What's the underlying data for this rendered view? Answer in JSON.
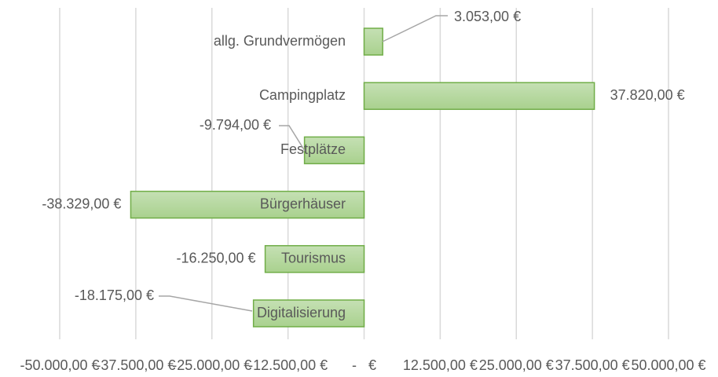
{
  "chart_data": {
    "type": "hbar",
    "categories": [
      "allg. Grundvermögen",
      "Campingplatz",
      "Festplätze",
      "Bürgerhäuser",
      "Tourismus",
      "Digitalisierung"
    ],
    "values": [
      3053,
      37820,
      -9794,
      -38329,
      -16250,
      -18175
    ],
    "value_labels": [
      "3.053,00 €",
      "37.820,00 €",
      "-9.794,00 €",
      "-38.329,00 €",
      "-16.250,00 €",
      "-18.175,00 €"
    ],
    "color": "#a9d18e",
    "xlim": [
      -50000,
      50000
    ],
    "xticks": [
      {
        "value": -50000,
        "label": "-50.000,00 €"
      },
      {
        "value": -37500,
        "label": "-37.500,00 €"
      },
      {
        "value": -25000,
        "label": "-25.000,00 €"
      },
      {
        "value": -12500,
        "label": "-12.500,00 €"
      },
      {
        "value": 0,
        "label": "-   €"
      },
      {
        "value": 12500,
        "label": "12.500,00 €"
      },
      {
        "value": 25000,
        "label": "25.000,00 €"
      },
      {
        "value": 37500,
        "label": "37.500,00 €"
      },
      {
        "value": 50000,
        "label": "50.000,00 €"
      }
    ],
    "grid": true
  }
}
